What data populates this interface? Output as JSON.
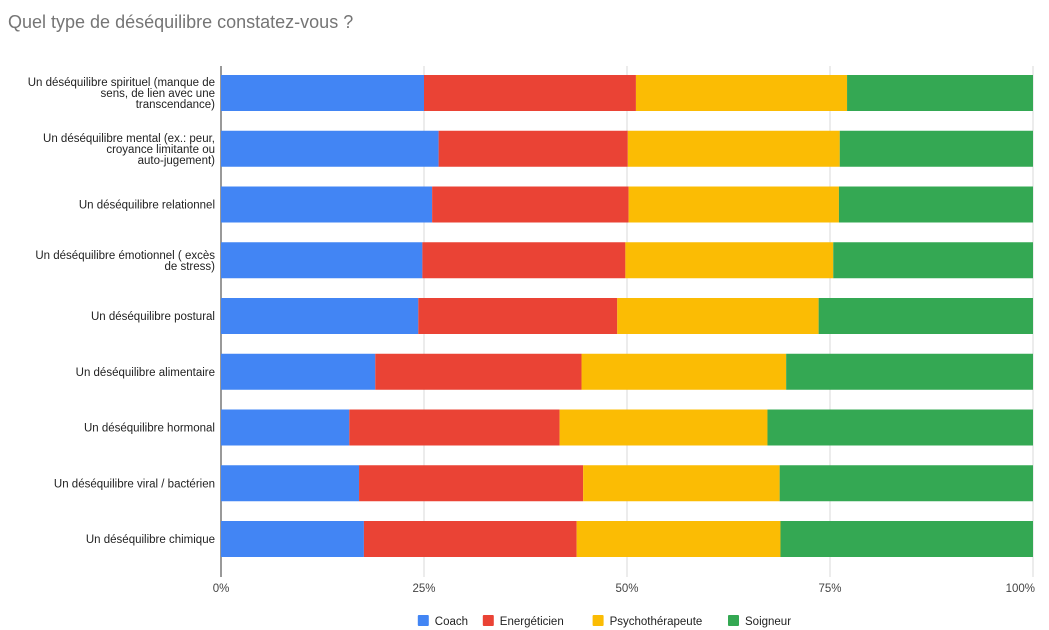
{
  "chart_data": {
    "type": "bar",
    "orientation": "horizontal",
    "stacked": "percent",
    "title": "Quel type de déséquilibre constatez-vous ?",
    "categories": [
      [
        "Un déséquilibre spirituel (manque de",
        "sens, de lien avec une",
        "transcendance)"
      ],
      [
        "Un déséquilibre mental (ex.: peur,",
        "croyance limitante ou",
        "auto-jugement)"
      ],
      [
        "Un déséquilibre relationnel"
      ],
      [
        "Un déséquilibre émotionnel ( excès",
        "de stress)"
      ],
      [
        "Un déséquilibre postural"
      ],
      [
        "Un déséquilibre alimentaire"
      ],
      [
        "Un déséquilibre hormonal"
      ],
      [
        "Un déséquilibre viral / bactérien"
      ],
      [
        "Un déséquilibre chimique"
      ]
    ],
    "series": [
      {
        "name": "Coach",
        "color": "#4285F4",
        "values": [
          25.0,
          26.8,
          26.0,
          24.8,
          24.3,
          19.0,
          15.8,
          17.0,
          17.6
        ]
      },
      {
        "name": "Energéticien",
        "color": "#EA4335",
        "values": [
          26.1,
          23.3,
          24.2,
          25.0,
          24.5,
          25.4,
          25.9,
          27.6,
          26.2
        ]
      },
      {
        "name": "Psychothérapeute",
        "color": "#FBBC04",
        "values": [
          26.0,
          26.1,
          25.9,
          25.6,
          24.8,
          25.2,
          25.6,
          24.2,
          25.1
        ]
      },
      {
        "name": "Soigneur",
        "color": "#34A853",
        "values": [
          22.9,
          23.8,
          23.9,
          24.6,
          26.4,
          30.4,
          32.7,
          31.2,
          31.1
        ]
      }
    ],
    "x_axis": {
      "ticks": [
        "0%",
        "25%",
        "50%",
        "75%",
        "100%"
      ],
      "range": [
        0,
        100
      ]
    },
    "legend_position": "bottom",
    "grid": "vertical"
  }
}
